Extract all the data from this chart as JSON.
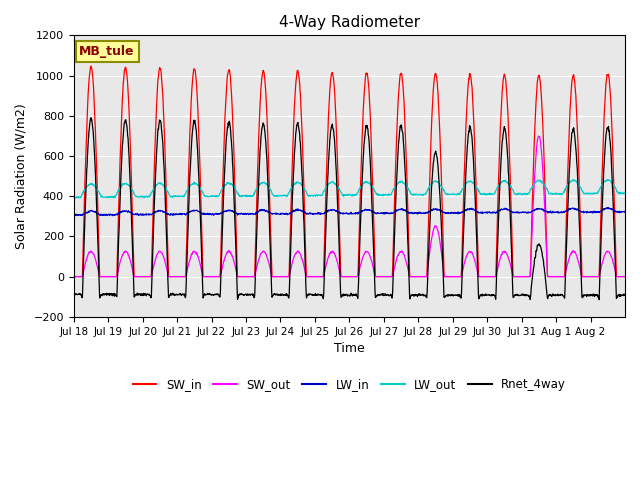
{
  "title": "4-Way Radiometer",
  "xlabel": "Time",
  "ylabel": "Solar Radiation (W/m2)",
  "annotation": "MB_tule",
  "ylim": [
    -200,
    1200
  ],
  "yticks": [
    -200,
    0,
    200,
    400,
    600,
    800,
    1000,
    1200
  ],
  "legend_entries": [
    "SW_in",
    "SW_out",
    "LW_in",
    "LW_out",
    "Rnet_4way"
  ],
  "legend_colors": [
    "#ff0000",
    "#ff00ff",
    "#0000cc",
    "#00cccc",
    "#000000"
  ],
  "xtick_labels": [
    "Jul 18",
    "Jul 19",
    "Jul 20",
    "Jul 21",
    "Jul 22",
    "Jul 23",
    "Jul 24",
    "Jul 25",
    "Jul 26",
    "Jul 27",
    "Jul 28",
    "Jul 29",
    "Jul 30",
    "Jul 31",
    "Aug 1",
    "Aug 2"
  ],
  "n_days": 16,
  "sw_in_peaks": [
    1045,
    1040,
    1038,
    1035,
    1030,
    1025,
    1020,
    1015,
    1012,
    1010,
    1008,
    1005,
    1002,
    1000,
    998,
    1010
  ],
  "sw_out_peaks": [
    125,
    125,
    125,
    125,
    125,
    125,
    125,
    125,
    125,
    125,
    250,
    125,
    125,
    700,
    125,
    125
  ],
  "lw_in_mean": 312,
  "lw_out_mean": 400,
  "rnet_night": -100,
  "annotation_color": "#8B0000",
  "annotation_bg": "#ffff99",
  "annotation_edge": "#8B8B00",
  "axes_bg": "#e8e8e8",
  "grid_color": "#ffffff"
}
